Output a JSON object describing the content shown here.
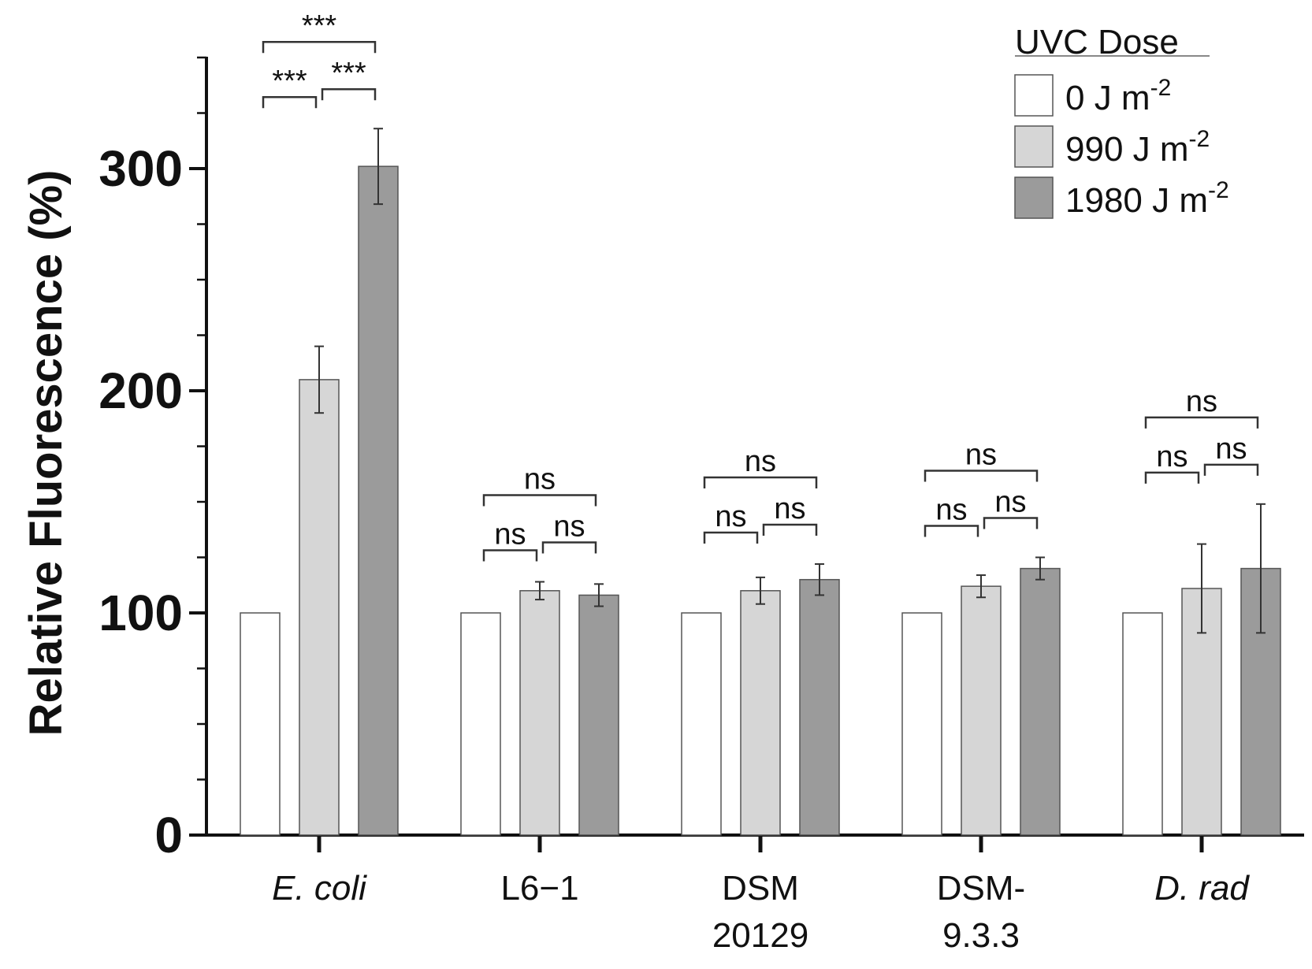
{
  "chart_data": {
    "type": "bar",
    "title": "",
    "xlabel": "",
    "ylabel": "Relative Fluorescence (%)",
    "ylim": [
      0,
      350
    ],
    "yticks": [
      0,
      100,
      200,
      300
    ],
    "categories": [
      {
        "line1": "E. coli",
        "line2": "",
        "italic": true
      },
      {
        "line1": "L6−1",
        "line2": "",
        "italic": false
      },
      {
        "line1": "DSM",
        "line2": "20129",
        "italic": false
      },
      {
        "line1": "DSM-",
        "line2": "9.3.3",
        "italic": false
      },
      {
        "line1": "D. rad",
        "line2": "",
        "italic": true
      }
    ],
    "series": [
      {
        "name": "0 J m",
        "sup": "-2",
        "color": "#ffffff",
        "values": [
          100,
          100,
          100,
          100,
          100
        ],
        "errors": [
          0,
          0,
          0,
          0,
          0
        ]
      },
      {
        "name": "990 J m",
        "sup": "-2",
        "color": "#d6d6d6",
        "values": [
          205,
          110,
          110,
          112,
          111
        ],
        "errors": [
          15,
          4,
          6,
          5,
          20
        ]
      },
      {
        "name": "1980 J m",
        "sup": "-2",
        "color": "#9b9b9b",
        "values": [
          301,
          108,
          115,
          120,
          120
        ],
        "errors": [
          17,
          5,
          7,
          5,
          29
        ]
      }
    ],
    "significance": [
      {
        "labels": [
          "***",
          "***",
          "***"
        ]
      },
      {
        "labels": [
          "ns",
          "ns",
          "ns"
        ]
      },
      {
        "labels": [
          "ns",
          "ns",
          "ns"
        ]
      },
      {
        "labels": [
          "ns",
          "ns",
          "ns"
        ]
      },
      {
        "labels": [
          "ns",
          "ns",
          "ns"
        ]
      }
    ],
    "legend": {
      "title": "UVC Dose",
      "position": "top-right"
    }
  }
}
